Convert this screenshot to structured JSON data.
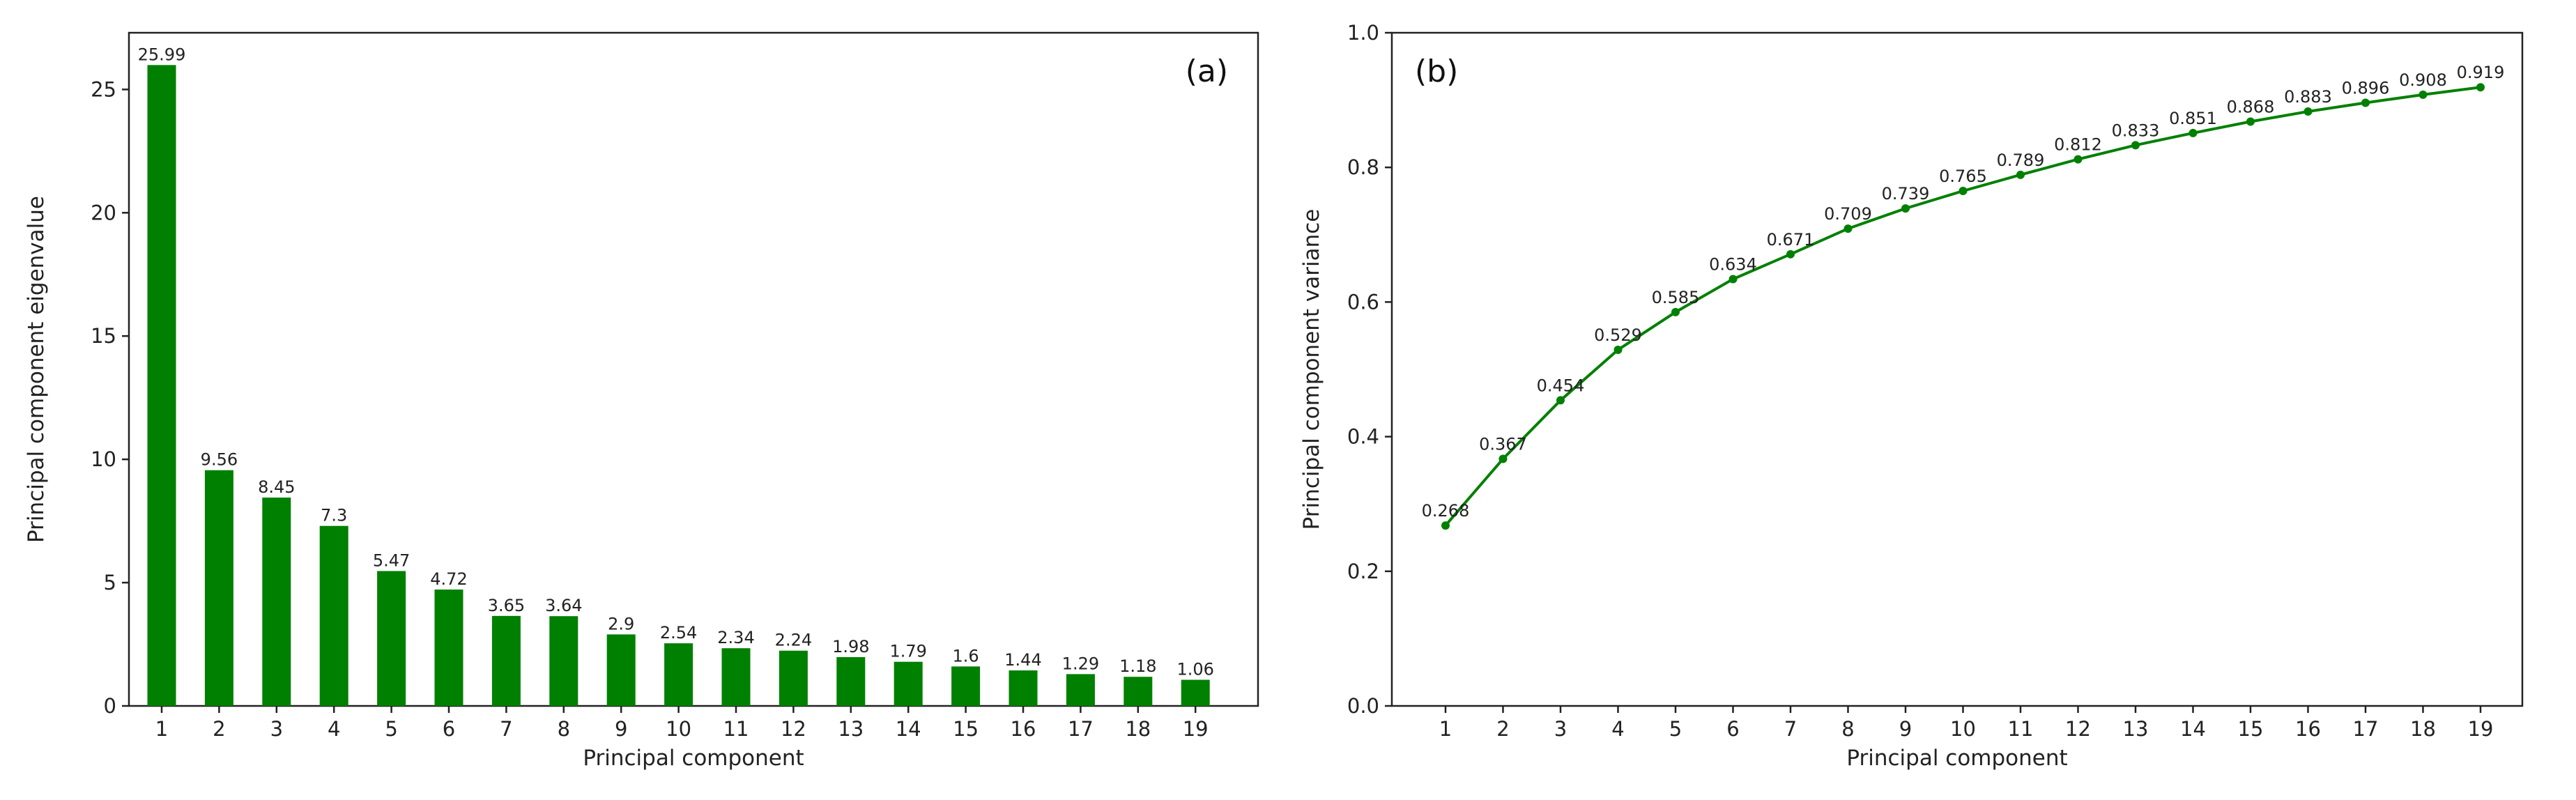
{
  "colors": {
    "mark": "#008000",
    "axis": "#222222"
  },
  "chart_data": [
    {
      "type": "bar",
      "panel_label": "(a)",
      "xlabel": "Principal component",
      "ylabel": "Principal component eigenvalue",
      "categories": [
        "1",
        "2",
        "3",
        "4",
        "5",
        "6",
        "7",
        "8",
        "9",
        "10",
        "11",
        "12",
        "13",
        "14",
        "15",
        "16",
        "17",
        "18",
        "19"
      ],
      "values": [
        25.99,
        9.56,
        8.45,
        7.3,
        5.47,
        4.72,
        3.65,
        3.64,
        2.9,
        2.54,
        2.34,
        2.24,
        1.98,
        1.79,
        1.6,
        1.44,
        1.29,
        1.18,
        1.06
      ],
      "data_labels": [
        "25.99",
        "9.56",
        "8.45",
        "7.3",
        "5.47",
        "4.72",
        "3.65",
        "3.64",
        "2.9",
        "2.54",
        "2.34",
        "2.24",
        "1.98",
        "1.79",
        "1.6",
        "1.44",
        "1.29",
        "1.18",
        "1.06"
      ],
      "yticks": [
        "0",
        "5",
        "10",
        "15",
        "20",
        "25"
      ],
      "ylim": [
        0,
        27.3
      ],
      "grid": false,
      "color": "#008000"
    },
    {
      "type": "line",
      "panel_label": "(b)",
      "xlabel": "Principal component",
      "ylabel": "Principal component variance",
      "categories": [
        "1",
        "2",
        "3",
        "4",
        "5",
        "6",
        "7",
        "8",
        "9",
        "10",
        "11",
        "12",
        "13",
        "14",
        "15",
        "16",
        "17",
        "18",
        "19"
      ],
      "values": [
        0.268,
        0.367,
        0.454,
        0.529,
        0.585,
        0.634,
        0.671,
        0.709,
        0.739,
        0.765,
        0.789,
        0.812,
        0.833,
        0.851,
        0.868,
        0.883,
        0.896,
        0.908,
        0.919
      ],
      "data_labels": [
        "0.268",
        "0.367",
        "0.454",
        "0.529",
        "0.585",
        "0.634",
        "0.671",
        "0.709",
        "0.739",
        "0.765",
        "0.789",
        "0.812",
        "0.833",
        "0.851",
        "0.868",
        "0.883",
        "0.896",
        "0.908",
        "0.919"
      ],
      "yticks": [
        "0.0",
        "0.2",
        "0.4",
        "0.6",
        "0.8",
        "1.0"
      ],
      "ylim": [
        0,
        1.0
      ],
      "grid": false,
      "color": "#008000"
    }
  ]
}
